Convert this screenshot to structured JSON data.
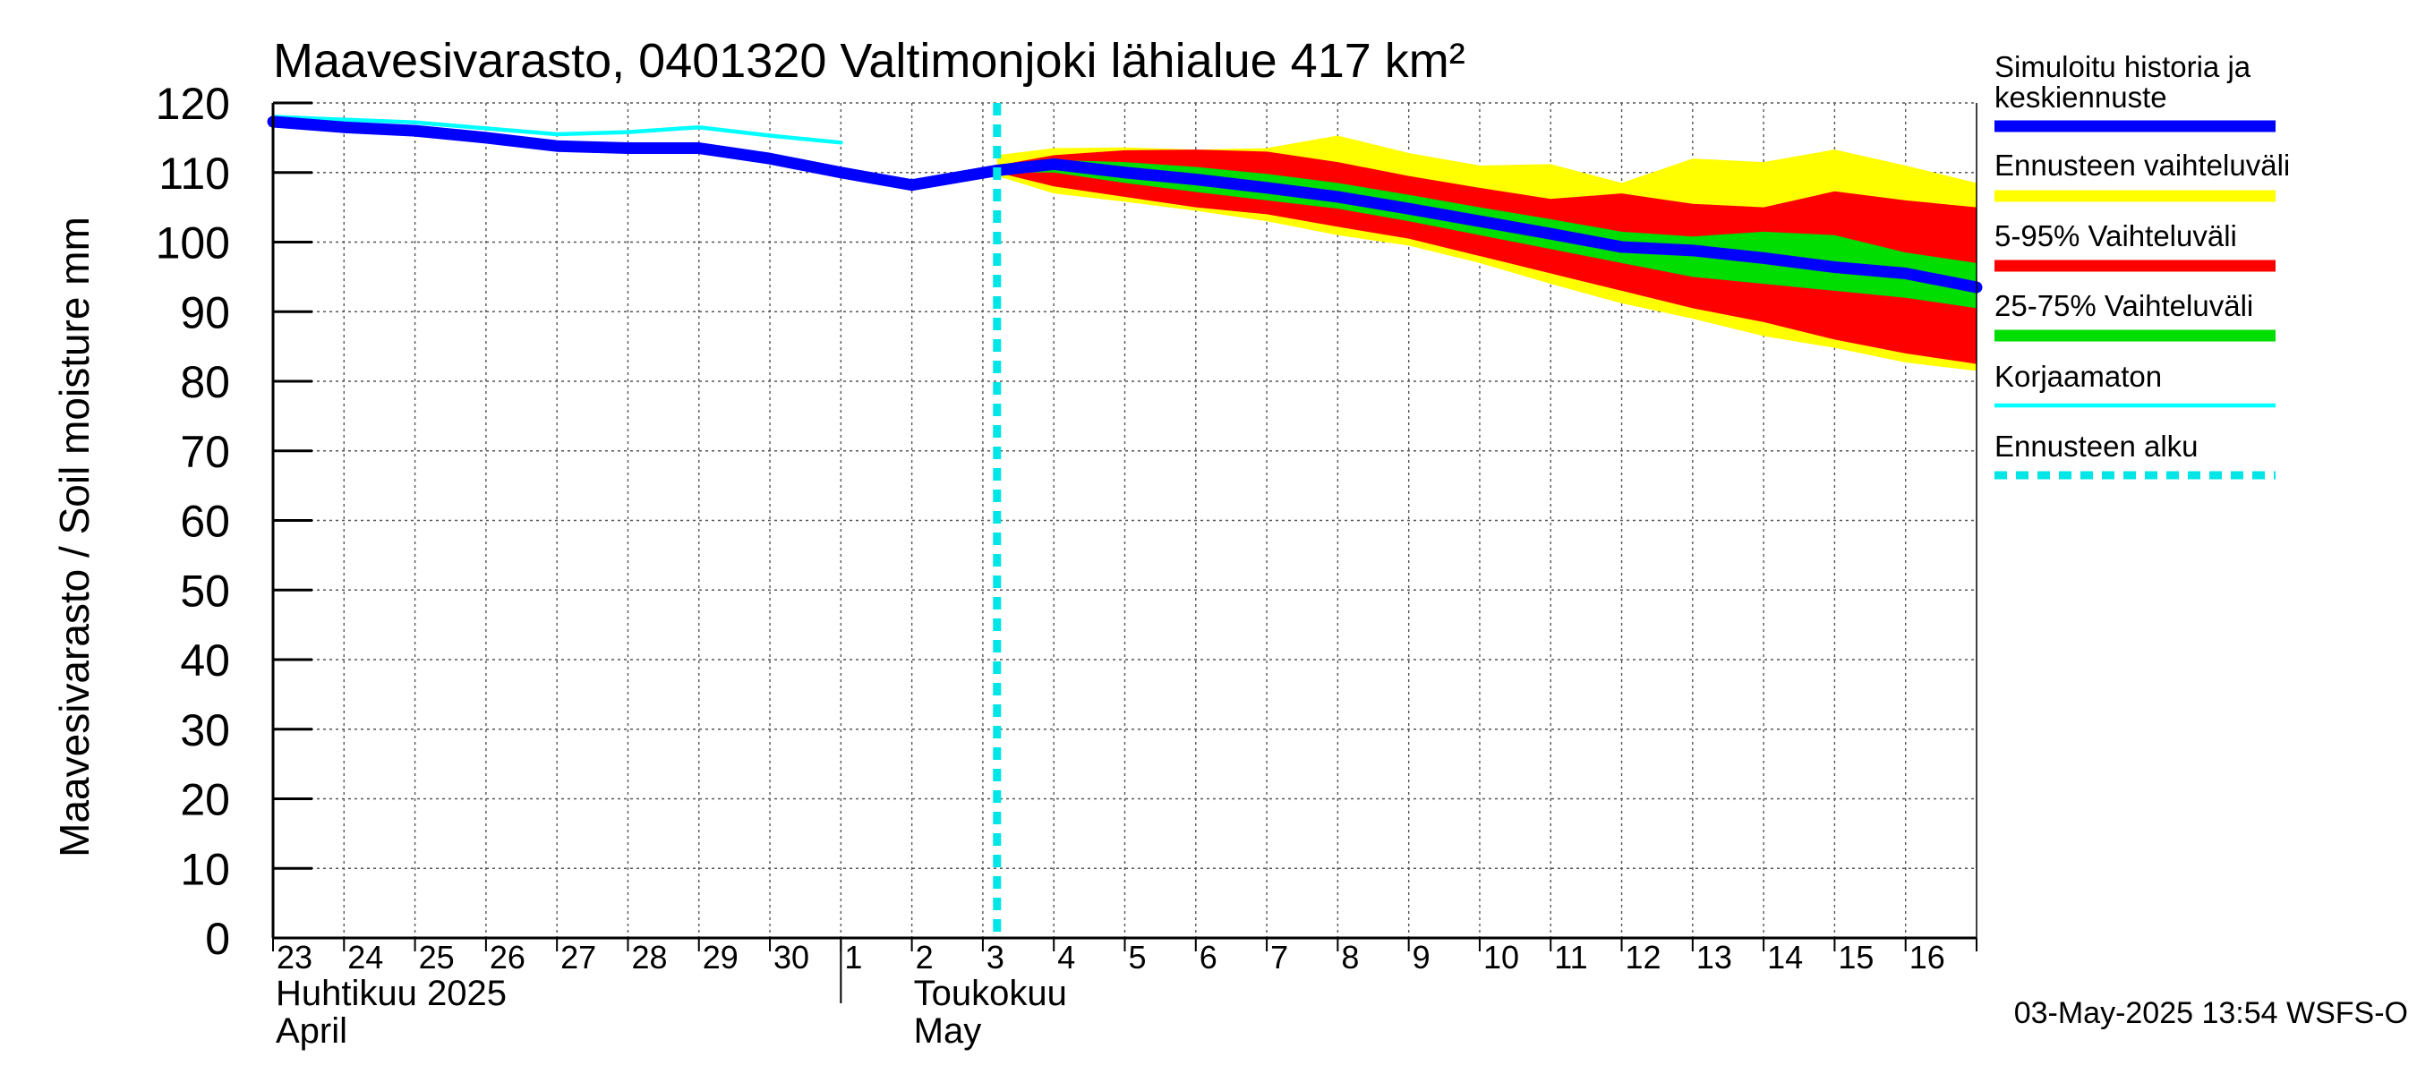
{
  "chart_data": {
    "type": "area",
    "title": "Maavesivarasto, 0401320 Valtimonjoki lähialue 417 km²",
    "ylabel": "Maavesivarasto / Soil moisture   mm",
    "ylim": [
      0,
      120
    ],
    "yticks": [
      "0",
      "10",
      "20",
      "30",
      "40",
      "50",
      "60",
      "70",
      "80",
      "90",
      "100",
      "110",
      "120"
    ],
    "grid": true,
    "x_day_index": [
      0,
      1,
      2,
      3,
      4,
      5,
      6,
      7,
      8,
      9,
      10,
      11,
      12,
      13,
      14,
      15,
      16,
      17,
      18,
      19,
      20,
      21,
      22,
      23,
      24
    ],
    "xtick_labels": [
      "23",
      "24",
      "25",
      "26",
      "27",
      "28",
      "29",
      "30",
      "1",
      "2",
      "3",
      "4",
      "5",
      "6",
      "7",
      "8",
      "9",
      "10",
      "11",
      "12",
      "13",
      "14",
      "15",
      "16"
    ],
    "month_labels": [
      {
        "line1": "Huhtikuu  2025",
        "line2": "April",
        "start_day": 0
      },
      {
        "line1": "Toukokuu",
        "line2": "May",
        "start_day": 9
      }
    ],
    "forecast_start_day": 10.2,
    "series": [
      {
        "name": "Korjaamaton",
        "color": "#00ffff",
        "x": [
          0,
          2,
          4,
          5,
          6,
          7,
          8
        ],
        "values": [
          118.0,
          117.2,
          115.5,
          115.8,
          116.5,
          115.3,
          114.3
        ]
      },
      {
        "name": "Simuloitu historia ja keskiennuste",
        "color": "#0000ff",
        "x": [
          0,
          1,
          2,
          3,
          4,
          5,
          6,
          7,
          8,
          9,
          10.2,
          11,
          12,
          13,
          14,
          15,
          16,
          17,
          18,
          19,
          20,
          21,
          22,
          23,
          24
        ],
        "values": [
          117.3,
          116.5,
          116.0,
          115.0,
          113.8,
          113.5,
          113.5,
          112.0,
          110.0,
          108.2,
          110.3,
          111.2,
          110.0,
          109.0,
          107.8,
          106.5,
          104.8,
          103.0,
          101.2,
          99.3,
          98.8,
          97.7,
          96.4,
          95.5,
          93.5
        ]
      }
    ],
    "bands": [
      {
        "name": "Ennusteen vaihteluväli",
        "color": "#ffff00",
        "x": [
          10.2,
          11,
          12,
          13,
          14,
          15,
          16,
          17,
          18,
          19,
          20,
          21,
          22,
          23,
          24
        ],
        "upper": [
          112.5,
          113.5,
          113.6,
          113.3,
          113.5,
          115.3,
          112.8,
          111.0,
          111.2,
          108.5,
          112.0,
          111.5,
          113.3,
          111.0,
          108.5
        ],
        "lower": [
          109.5,
          107.0,
          105.8,
          104.5,
          103.0,
          101.0,
          99.5,
          97.0,
          94.0,
          91.2,
          89.0,
          86.5,
          84.8,
          82.7,
          81.5
        ]
      },
      {
        "name": "5-95% Vaihteluväli",
        "color": "#ff0000",
        "x": [
          10.2,
          11,
          12,
          13,
          14,
          15,
          16,
          17,
          18,
          19,
          20,
          21,
          22,
          23,
          24
        ],
        "upper": [
          111.0,
          112.5,
          113.2,
          113.3,
          113.0,
          111.5,
          109.5,
          107.8,
          106.2,
          107.0,
          105.5,
          105.0,
          107.3,
          106.0,
          105.0
        ],
        "lower": [
          110.0,
          108.0,
          106.5,
          105.0,
          104.0,
          102.2,
          100.5,
          98.0,
          95.5,
          93.0,
          90.5,
          88.5,
          86.0,
          84.0,
          82.5
        ]
      },
      {
        "name": "25-75% Vaihteluväli",
        "color": "#00dd00",
        "x": [
          10.2,
          11,
          12,
          13,
          14,
          15,
          16,
          17,
          18,
          19,
          20,
          21,
          22,
          23,
          24
        ],
        "upper": [
          110.8,
          111.8,
          111.5,
          110.8,
          109.8,
          108.5,
          106.8,
          105.0,
          103.3,
          101.5,
          100.8,
          101.5,
          101.0,
          98.5,
          97.0
        ],
        "lower": [
          110.0,
          110.0,
          108.5,
          107.2,
          106.0,
          104.8,
          103.0,
          101.0,
          99.0,
          97.0,
          95.0,
          94.0,
          93.0,
          92.0,
          90.5
        ]
      }
    ],
    "legend_placement": "right",
    "legend": [
      {
        "label_lines": [
          "Simuloitu historia ja",
          "keskiennuste"
        ],
        "color": "#0000ff",
        "style": "thick"
      },
      {
        "label_lines": [
          "Ennusteen vaihteluväli"
        ],
        "color": "#ffff00",
        "style": "thick"
      },
      {
        "label_lines": [
          "5-95% Vaihteluväli"
        ],
        "color": "#ff0000",
        "style": "thick"
      },
      {
        "label_lines": [
          "25-75% Vaihteluväli"
        ],
        "color": "#00dd00",
        "style": "thick"
      },
      {
        "label_lines": [
          "Korjaamaton"
        ],
        "color": "#00ffff",
        "style": "thin"
      },
      {
        "label_lines": [
          "Ennusteen alku"
        ],
        "color": "#00e5e5",
        "style": "dashed"
      }
    ],
    "footer": "03-May-2025 13:54 WSFS-O"
  }
}
